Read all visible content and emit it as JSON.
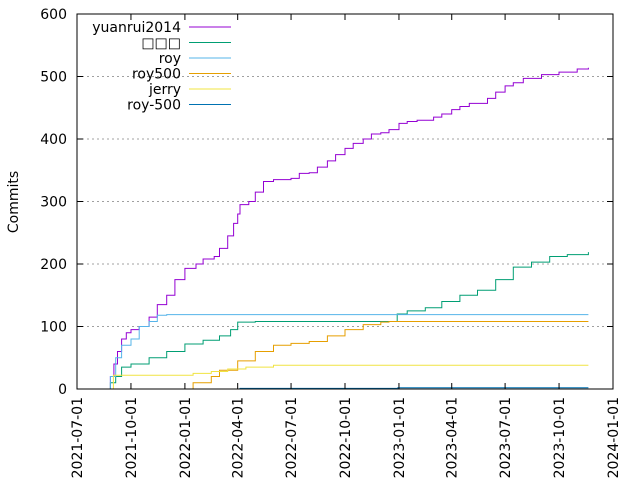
{
  "chart_data": {
    "type": "line",
    "title": "",
    "xlabel": "",
    "ylabel": "Commits",
    "ylim": [
      0,
      600
    ],
    "xlim": [
      "2021-07-01",
      "2024-01-01"
    ],
    "yticks": [
      0,
      100,
      200,
      300,
      400,
      500,
      600
    ],
    "xticks": [
      "2021-07-01",
      "2021-10-01",
      "2022-01-01",
      "2022-04-01",
      "2022-07-01",
      "2022-10-01",
      "2023-01-01",
      "2023-04-01",
      "2023-07-01",
      "2023-10-01",
      "2024-01-01"
    ],
    "grid": "horizontal dotted",
    "legend_position": "top-left",
    "series": [
      {
        "name": "yuanrui2014",
        "color": "#9400d3",
        "points": [
          [
            "2021-08-19",
            0
          ],
          [
            "2021-08-27",
            20
          ],
          [
            "2021-09-02",
            40
          ],
          [
            "2021-09-08",
            60
          ],
          [
            "2021-09-15",
            80
          ],
          [
            "2021-09-23",
            90
          ],
          [
            "2021-10-01",
            95
          ],
          [
            "2021-10-15",
            100
          ],
          [
            "2021-11-01",
            115
          ],
          [
            "2021-11-15",
            135
          ],
          [
            "2021-12-01",
            150
          ],
          [
            "2021-12-15",
            175
          ],
          [
            "2022-01-01",
            193
          ],
          [
            "2022-01-20",
            200
          ],
          [
            "2022-02-01",
            208
          ],
          [
            "2022-02-20",
            212
          ],
          [
            "2022-03-01",
            225
          ],
          [
            "2022-03-15",
            245
          ],
          [
            "2022-03-25",
            265
          ],
          [
            "2022-04-01",
            280
          ],
          [
            "2022-04-05",
            295
          ],
          [
            "2022-04-20",
            300
          ],
          [
            "2022-05-01",
            315
          ],
          [
            "2022-05-15",
            332
          ],
          [
            "2022-06-01",
            335
          ],
          [
            "2022-07-01",
            337
          ],
          [
            "2022-07-15",
            345
          ],
          [
            "2022-08-01",
            346
          ],
          [
            "2022-08-15",
            355
          ],
          [
            "2022-09-01",
            365
          ],
          [
            "2022-09-15",
            375
          ],
          [
            "2022-10-01",
            385
          ],
          [
            "2022-10-15",
            393
          ],
          [
            "2022-11-01",
            400
          ],
          [
            "2022-11-15",
            408
          ],
          [
            "2022-12-01",
            410
          ],
          [
            "2022-12-15",
            415
          ],
          [
            "2023-01-01",
            425
          ],
          [
            "2023-01-15",
            428
          ],
          [
            "2023-02-01",
            430
          ],
          [
            "2023-03-01",
            435
          ],
          [
            "2023-03-15",
            440
          ],
          [
            "2023-04-01",
            447
          ],
          [
            "2023-04-15",
            452
          ],
          [
            "2023-05-01",
            457
          ],
          [
            "2023-06-01",
            465
          ],
          [
            "2023-06-15",
            475
          ],
          [
            "2023-07-01",
            485
          ],
          [
            "2023-07-15",
            490
          ],
          [
            "2023-08-01",
            497
          ],
          [
            "2023-09-01",
            503
          ],
          [
            "2023-10-01",
            507
          ],
          [
            "2023-11-01",
            512
          ],
          [
            "2023-11-20",
            514
          ]
        ]
      },
      {
        "name": "□□□",
        "color": "#009e73",
        "points": [
          [
            "2021-08-19",
            0
          ],
          [
            "2021-08-27",
            10
          ],
          [
            "2021-09-05",
            20
          ],
          [
            "2021-09-15",
            35
          ],
          [
            "2021-10-01",
            40
          ],
          [
            "2021-11-01",
            50
          ],
          [
            "2021-12-01",
            60
          ],
          [
            "2022-01-01",
            72
          ],
          [
            "2022-02-01",
            78
          ],
          [
            "2022-03-01",
            85
          ],
          [
            "2022-03-20",
            95
          ],
          [
            "2022-04-01",
            107
          ],
          [
            "2022-05-01",
            108
          ],
          [
            "2022-07-01",
            108
          ],
          [
            "2022-10-01",
            108
          ],
          [
            "2022-12-25",
            108
          ],
          [
            "2022-12-29",
            120
          ],
          [
            "2023-01-15",
            125
          ],
          [
            "2023-02-15",
            130
          ],
          [
            "2023-03-15",
            140
          ],
          [
            "2023-04-15",
            150
          ],
          [
            "2023-05-15",
            158
          ],
          [
            "2023-06-15",
            175
          ],
          [
            "2023-07-15",
            195
          ],
          [
            "2023-08-15",
            203
          ],
          [
            "2023-09-15",
            212
          ],
          [
            "2023-10-15",
            215
          ],
          [
            "2023-11-20",
            219
          ]
        ]
      },
      {
        "name": "roy",
        "color": "#56b4e9",
        "points": [
          [
            "2021-08-19",
            0
          ],
          [
            "2021-08-27",
            20
          ],
          [
            "2021-09-05",
            50
          ],
          [
            "2021-09-15",
            70
          ],
          [
            "2021-10-01",
            80
          ],
          [
            "2021-10-15",
            100
          ],
          [
            "2021-11-01",
            108
          ],
          [
            "2021-11-15",
            118
          ],
          [
            "2021-12-01",
            119
          ],
          [
            "2022-12-01",
            119
          ],
          [
            "2023-11-20",
            119
          ]
        ]
      },
      {
        "name": "roy500",
        "color": "#e69f00",
        "points": [
          [
            "2021-12-25",
            0
          ],
          [
            "2022-01-15",
            10
          ],
          [
            "2022-02-15",
            20
          ],
          [
            "2022-03-01",
            30
          ],
          [
            "2022-04-01",
            45
          ],
          [
            "2022-05-01",
            60
          ],
          [
            "2022-06-01",
            70
          ],
          [
            "2022-07-01",
            73
          ],
          [
            "2022-08-01",
            76
          ],
          [
            "2022-09-01",
            85
          ],
          [
            "2022-10-01",
            95
          ],
          [
            "2022-11-01",
            103
          ],
          [
            "2022-12-01",
            107
          ],
          [
            "2022-12-15",
            108
          ],
          [
            "2023-06-01",
            108
          ],
          [
            "2023-11-20",
            108
          ]
        ]
      },
      {
        "name": "jerry",
        "color": "#f0e442",
        "points": [
          [
            "2021-08-27",
            0
          ],
          [
            "2021-09-01",
            22
          ],
          [
            "2021-12-10",
            22
          ],
          [
            "2022-01-15",
            25
          ],
          [
            "2022-02-15",
            28
          ],
          [
            "2022-03-15",
            32
          ],
          [
            "2022-04-15",
            35
          ],
          [
            "2022-06-01",
            38
          ],
          [
            "2023-11-20",
            38
          ]
        ]
      },
      {
        "name": "roy-500",
        "color": "#0072b2",
        "points": [
          [
            "2022-04-01",
            0
          ],
          [
            "2022-04-05",
            1
          ],
          [
            "2022-12-29",
            1
          ],
          [
            "2022-12-30",
            2
          ],
          [
            "2023-11-20",
            2
          ]
        ]
      }
    ]
  }
}
